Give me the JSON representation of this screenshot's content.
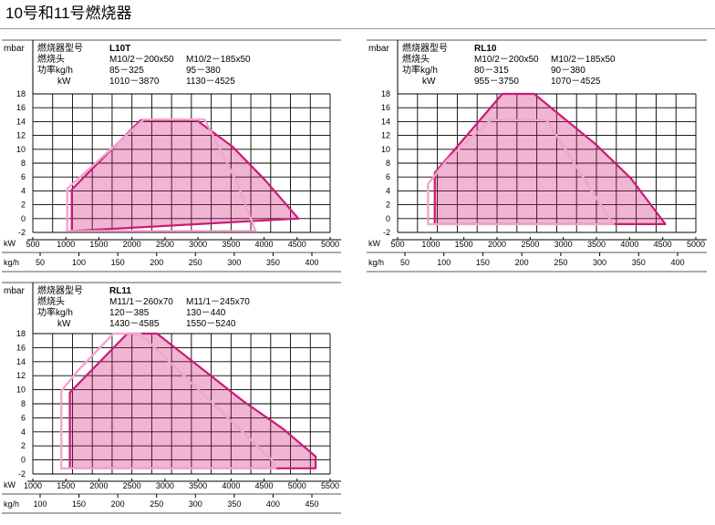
{
  "page": {
    "title": "10号和11号燃烧器"
  },
  "chart_data": [
    {
      "type": "area",
      "model": "L10T",
      "spec_labels": [
        "燃烧器型号",
        "燃烧头",
        "功率kg/h",
        "kW"
      ],
      "spec_values": [
        [
          "M10/2－200x50",
          "85－325",
          "1010－3870"
        ],
        [
          "M10/2－185x50",
          "95－380",
          "1130－4525"
        ]
      ],
      "ylabel": "mbar",
      "yticks": [
        18,
        16,
        14,
        12,
        10,
        8,
        6,
        4,
        2,
        0,
        -2
      ],
      "ylim": [
        -2,
        18
      ],
      "x_unit": "kW",
      "xticks": [
        500,
        1000,
        1500,
        2000,
        2500,
        3000,
        3500,
        4000,
        4500,
        5000
      ],
      "xlim": [
        500,
        5000
      ],
      "x2_unit": "kg/h",
      "x2ticks": [
        50,
        100,
        150,
        200,
        250,
        300,
        350,
        400
      ],
      "series": [
        {
          "style": "solid",
          "color": "#cc1a77",
          "points": [
            [
              1090,
              -1.8
            ],
            [
              1090,
              4.2
            ],
            [
              2130,
              14.2
            ],
            [
              2980,
              14.2
            ],
            [
              3520,
              10.4
            ],
            [
              4010,
              5.6
            ],
            [
              4520,
              0
            ]
          ]
        },
        {
          "style": "dotted",
          "color": "#f2a5cc",
          "points": [
            [
              1020,
              -1.8
            ],
            [
              1020,
              4.3
            ],
            [
              2180,
              14.3
            ],
            [
              3100,
              14.3
            ],
            [
              3600,
              5
            ],
            [
              3870,
              -1.8
            ]
          ]
        }
      ]
    },
    {
      "type": "area",
      "model": "RL10",
      "spec_labels": [
        "燃烧器型号",
        "燃烧头",
        "功率kg/h",
        "kW"
      ],
      "spec_values": [
        [
          "M10/2－200x50",
          "80－315",
          "955－3750"
        ],
        [
          "M10/2－185x50",
          "90－380",
          "1070－4525"
        ]
      ],
      "ylabel": "mbar",
      "yticks": [
        18,
        16,
        14,
        12,
        10,
        8,
        6,
        4,
        2,
        0,
        -2
      ],
      "ylim": [
        -2,
        18
      ],
      "x_unit": "kW",
      "xticks": [
        500,
        1000,
        1500,
        2000,
        2500,
        3000,
        3500,
        4000,
        4500,
        5000
      ],
      "xlim": [
        500,
        5000
      ],
      "x2_unit": "kg/h",
      "x2ticks": [
        50,
        100,
        150,
        200,
        250,
        300,
        350,
        400
      ],
      "series": [
        {
          "style": "solid",
          "color": "#cc1a77",
          "points": [
            [
              1060,
              -0.8
            ],
            [
              1060,
              6.6
            ],
            [
              2080,
              18
            ],
            [
              2560,
              18
            ],
            [
              3480,
              10.8
            ],
            [
              4020,
              5.8
            ],
            [
              4540,
              -0.8
            ]
          ]
        },
        {
          "style": "dotted",
          "color": "#f2a5cc",
          "points": [
            [
              960,
              -0.8
            ],
            [
              960,
              5
            ],
            [
              1250,
              8.5
            ],
            [
              1900,
              14.2
            ],
            [
              2750,
              14.2
            ],
            [
              3750,
              -0.8
            ]
          ]
        }
      ]
    },
    {
      "type": "area",
      "model": "RL11",
      "spec_labels": [
        "燃烧器型号",
        "燃烧头",
        "功率kg/h",
        "kW"
      ],
      "spec_values": [
        [
          "M11/1－260x70",
          "120－385",
          "1430－4585"
        ],
        [
          "M11/1－245x70",
          "130－440",
          "1550－5240"
        ]
      ],
      "ylabel": "mbar",
      "yticks": [
        18,
        16,
        14,
        12,
        10,
        8,
        6,
        4,
        2,
        0,
        -2
      ],
      "ylim": [
        -2,
        18
      ],
      "x_unit": "kW",
      "xticks": [
        1000,
        1500,
        2000,
        2500,
        3000,
        3500,
        4000,
        4500,
        5000,
        5500
      ],
      "xlim": [
        1000,
        5500
      ],
      "x2_unit": "kg/h",
      "x2ticks": [
        100,
        150,
        200,
        250,
        300,
        350,
        400,
        450
      ],
      "series": [
        {
          "style": "solid",
          "color": "#cc1a77",
          "points": [
            [
              1560,
              -1.2
            ],
            [
              1560,
              9.6
            ],
            [
              2430,
              18
            ],
            [
              2880,
              18
            ],
            [
              4180,
              8.4
            ],
            [
              4790,
              4.4
            ],
            [
              5280,
              0.5
            ],
            [
              5280,
              -1.2
            ]
          ]
        },
        {
          "style": "dotted",
          "color": "#f2a5cc",
          "points": [
            [
              1430,
              -1.2
            ],
            [
              1430,
              9.8
            ],
            [
              1690,
              12.8
            ],
            [
              2220,
              18
            ],
            [
              2620,
              18
            ],
            [
              4620,
              0
            ],
            [
              4680,
              -1.2
            ]
          ]
        }
      ]
    }
  ]
}
